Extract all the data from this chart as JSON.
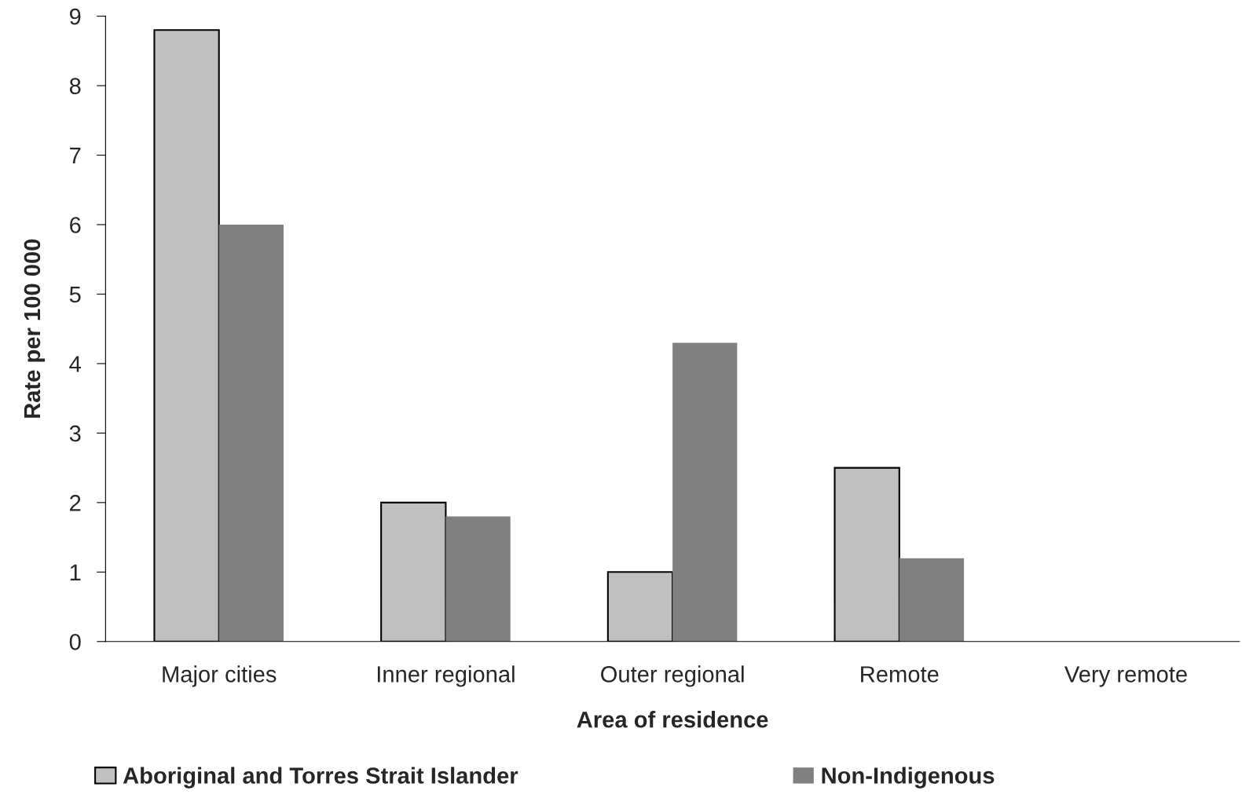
{
  "chart_data": {
    "type": "bar",
    "xlabel": "Area of residence",
    "ylabel": "Rate per 100 000",
    "categories": [
      "Major cities",
      "Inner regional",
      "Outer regional",
      "Remote",
      "Very remote"
    ],
    "series": [
      {
        "name": "Aboriginal and Torres Strait Islander",
        "color": "#c0c0c0",
        "values": [
          8.8,
          2.0,
          1.0,
          2.5,
          null
        ]
      },
      {
        "name": "Non-Indigenous",
        "color": "#808080",
        "values": [
          6.0,
          1.8,
          4.3,
          1.2,
          null
        ]
      }
    ],
    "ylim": [
      0,
      9
    ],
    "yticks": [
      0,
      1,
      2,
      3,
      4,
      5,
      6,
      7,
      8,
      9
    ],
    "grid": false,
    "legend": "bottom"
  }
}
